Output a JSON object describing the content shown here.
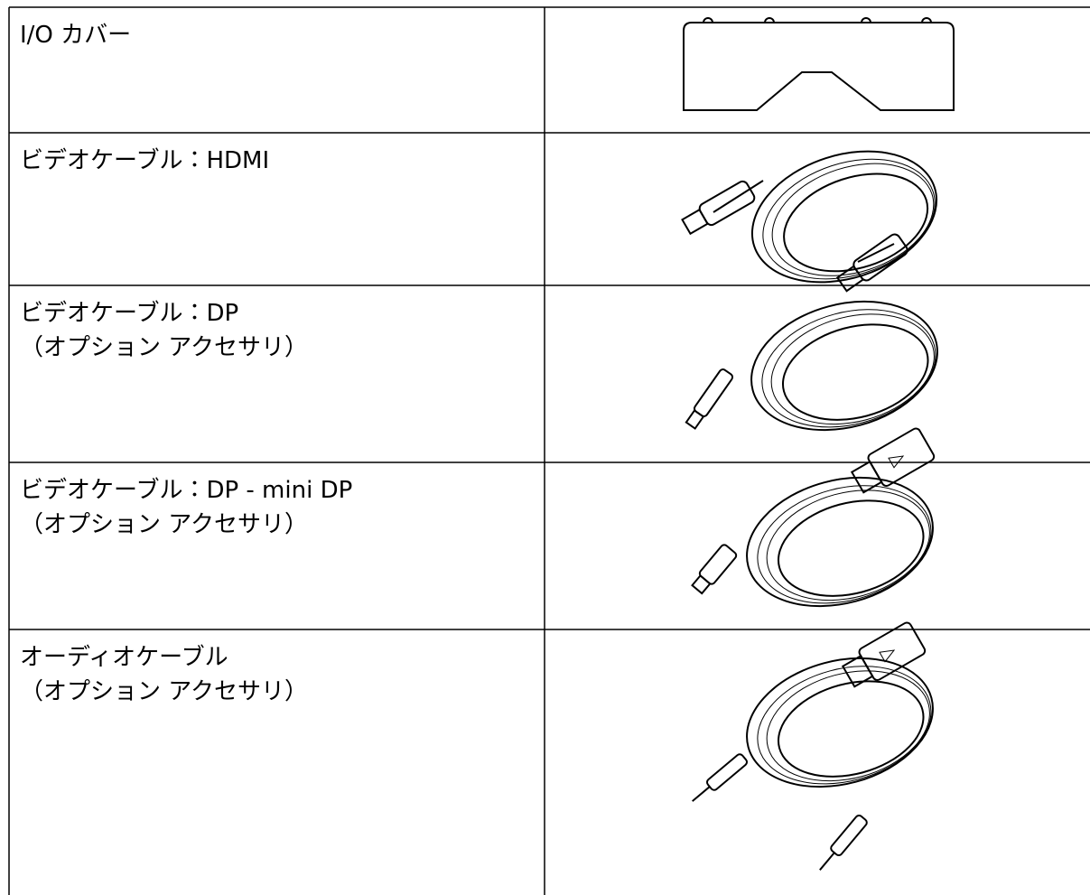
{
  "table": {
    "rows": [
      [
        "I/O カバー"
      ],
      [
        "ビデオケーブル：HDMI"
      ],
      [
        "ビデオケーブル：DP",
        "（オプション アクセサリ）"
      ],
      [
        "ビデオケーブル：DP - mini DP",
        "（オプション アクセサリ）"
      ],
      [
        "オーディオケーブル",
        "（オプション アクセサリ）"
      ]
    ]
  }
}
